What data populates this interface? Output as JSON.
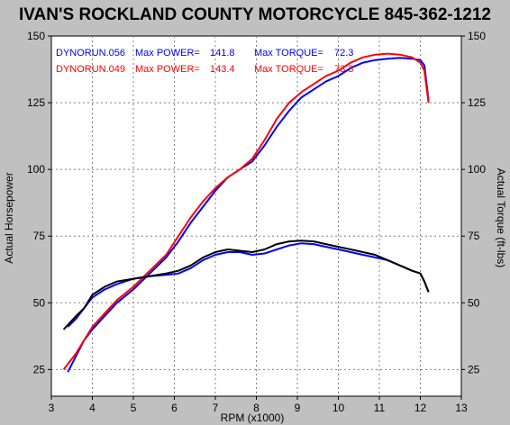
{
  "chart_data": {
    "type": "line",
    "title": "IVAN'S ROCKLAND COUNTY MOTORCYCLE 845-362-1212",
    "xlabel": "RPM (x1000)",
    "ylabel_left": "Actual Horsepower",
    "ylabel_right": "Actual Torque (ft-lbs)",
    "xlim": [
      3,
      13
    ],
    "ylim": [
      15,
      150
    ],
    "x_ticks": [
      "3",
      "4",
      "5",
      "6",
      "7",
      "8",
      "9",
      "10",
      "11",
      "12",
      "13"
    ],
    "y_ticks_left": [
      "25",
      "50",
      "75",
      "100",
      "125",
      "150"
    ],
    "y_ticks_right": [
      "25",
      "50",
      "75",
      "100",
      "125",
      "150"
    ],
    "grid": true,
    "legend_position": "top-left",
    "legend": [
      {
        "run": "DYNORUN.056",
        "power_label": "Max POWER=",
        "power_value": "141.8",
        "torque_label": "Max TORQUE=",
        "torque_value": "72.3",
        "color": "#0000ff"
      },
      {
        "run": "DYNORUN.049",
        "power_label": "Max POWER=",
        "power_value": "143.4",
        "torque_label": "Max TORQUE=",
        "torque_value": "73.3",
        "color": "#ff0000"
      }
    ],
    "series": [
      {
        "color": "#0000ff",
        "kind": "power",
        "x": [
          3.4,
          3.6,
          3.8,
          4.0,
          4.3,
          4.6,
          5.0,
          5.4,
          5.8,
          6.1,
          6.4,
          6.7,
          7.0,
          7.3,
          7.6,
          7.9,
          8.2,
          8.5,
          8.8,
          9.1,
          9.4,
          9.7,
          10.0,
          10.3,
          10.6,
          10.9,
          11.2,
          11.5,
          11.8,
          12.0,
          12.1,
          12.2
        ],
        "y": [
          24,
          30,
          36,
          40,
          45,
          50,
          55,
          61,
          67,
          73,
          80,
          86,
          92,
          97,
          100,
          103,
          109,
          116,
          122,
          127,
          130,
          133,
          135,
          138,
          140,
          141,
          141.5,
          141.8,
          141.5,
          141,
          139,
          126
        ]
      },
      {
        "color": "#ff0000",
        "kind": "power",
        "x": [
          3.3,
          3.6,
          3.8,
          4.0,
          4.3,
          4.6,
          5.0,
          5.4,
          5.8,
          6.1,
          6.4,
          6.7,
          7.0,
          7.3,
          7.6,
          7.9,
          8.2,
          8.5,
          8.8,
          9.1,
          9.4,
          9.7,
          10.0,
          10.3,
          10.6,
          10.9,
          11.2,
          11.5,
          11.8,
          12.0,
          12.1,
          12.2
        ],
        "y": [
          25,
          31,
          36,
          41,
          46,
          51,
          56,
          62,
          68,
          75,
          82,
          88,
          93,
          97,
          100,
          104,
          111,
          119,
          125,
          129,
          132,
          135,
          137,
          140,
          142,
          143,
          143.4,
          143,
          142,
          140,
          137,
          125
        ]
      },
      {
        "color": "#0000ff",
        "kind": "torque",
        "x": [
          3.4,
          3.6,
          3.8,
          4.0,
          4.3,
          4.6,
          5.0,
          5.4,
          5.8,
          6.1,
          6.4,
          6.7,
          7.0,
          7.3,
          7.6,
          7.9,
          8.2,
          8.5,
          8.8,
          9.1,
          9.4,
          9.7,
          10.0,
          10.3,
          10.6,
          10.9,
          11.2,
          11.5,
          11.8,
          12.0,
          12.1,
          12.2
        ],
        "y": [
          41,
          44,
          48,
          52,
          55,
          57,
          59,
          60,
          60.5,
          61,
          63,
          66,
          68,
          69,
          69,
          68,
          68.5,
          70,
          71.5,
          72.3,
          72,
          71,
          70,
          69,
          68,
          67,
          66,
          64,
          62,
          61,
          58,
          54
        ]
      },
      {
        "color": "#000000",
        "kind": "torque",
        "x": [
          3.3,
          3.6,
          3.8,
          4.0,
          4.3,
          4.6,
          5.0,
          5.4,
          5.8,
          6.1,
          6.4,
          6.7,
          7.0,
          7.3,
          7.6,
          7.9,
          8.2,
          8.5,
          8.8,
          9.1,
          9.4,
          9.7,
          10.0,
          10.3,
          10.6,
          10.9,
          11.2,
          11.5,
          11.8,
          12.0,
          12.1,
          12.2
        ],
        "y": [
          40,
          45,
          48,
          53,
          56,
          58,
          59,
          60,
          61,
          62,
          64,
          67,
          69,
          70,
          69.5,
          69,
          70,
          72,
          73,
          73.3,
          73,
          72,
          71,
          70,
          69,
          68,
          66,
          64,
          62,
          61,
          58,
          54
        ]
      }
    ]
  }
}
